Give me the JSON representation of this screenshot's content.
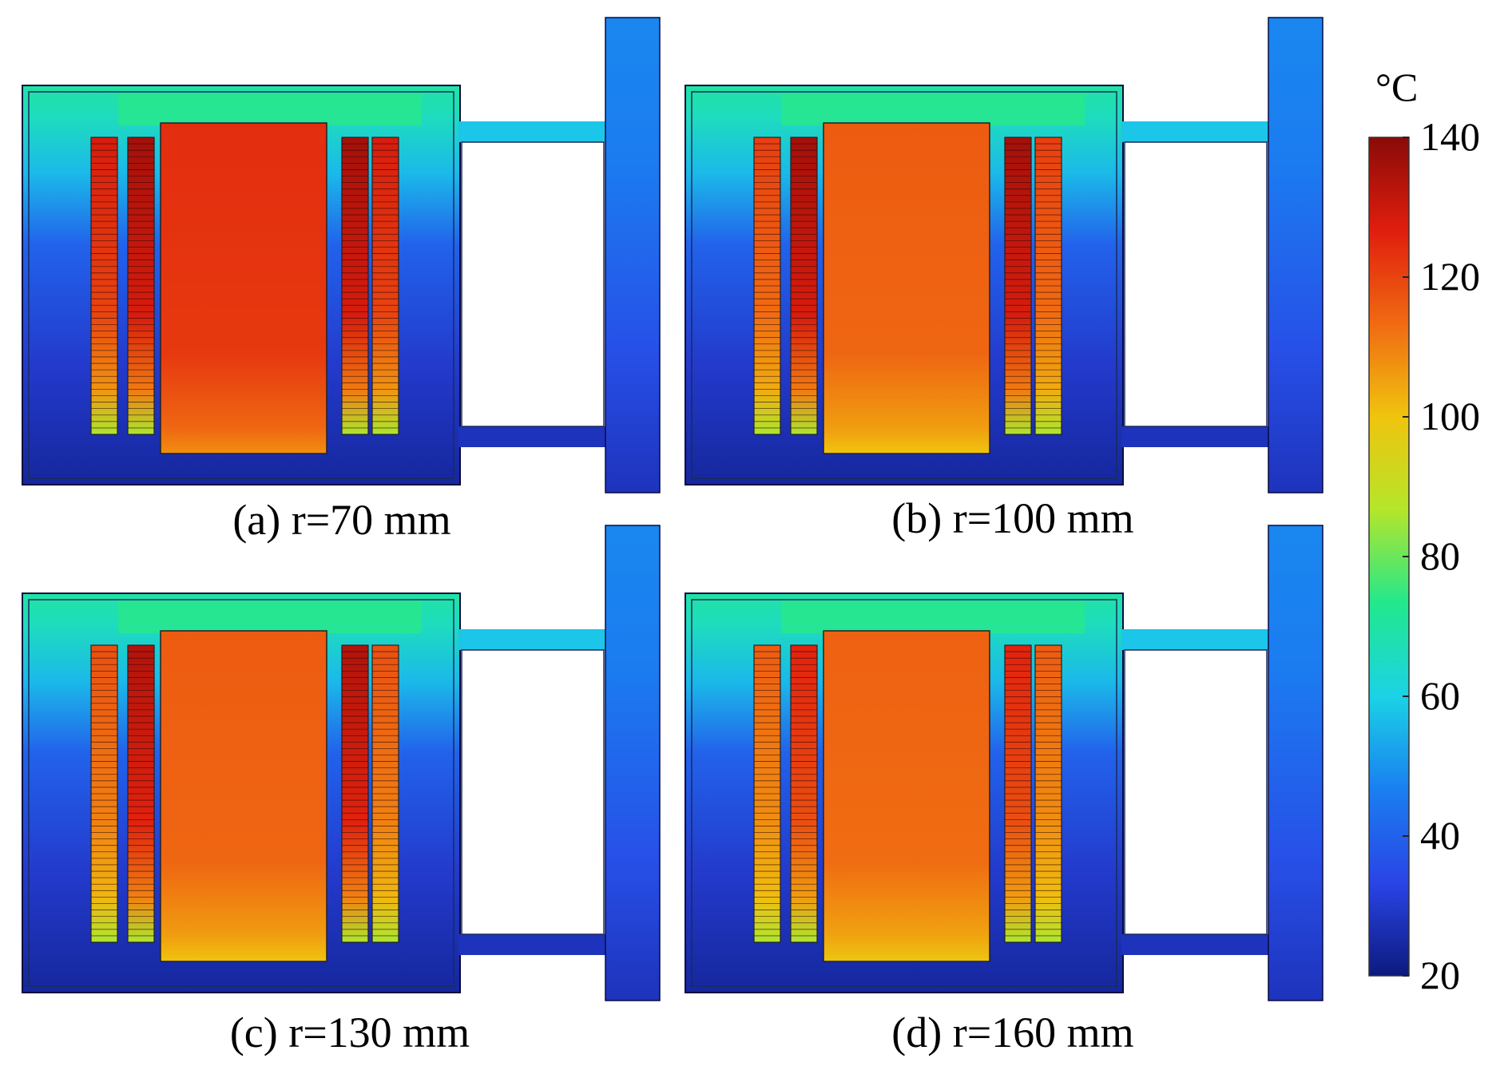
{
  "figure": {
    "panels": [
      {
        "id": "a",
        "caption": "(a) r=70 mm",
        "outer_coil_temp": 128,
        "inner_coil_temp": 136,
        "core_temp": 124,
        "coil_bottom_temp": 86
      },
      {
        "id": "b",
        "caption": "(b) r=100 mm",
        "outer_coil_temp": 121,
        "inner_coil_temp": 136,
        "core_temp": 116,
        "coil_bottom_temp": 86
      },
      {
        "id": "c",
        "caption": "(c) r=130 mm",
        "outer_coil_temp": 118,
        "inner_coil_temp": 134,
        "core_temp": 116,
        "coil_bottom_temp": 86
      },
      {
        "id": "d",
        "caption": "(d) r=160 mm",
        "outer_coil_temp": 116,
        "inner_coil_temp": 126,
        "core_temp": 115,
        "coil_bottom_temp": 86
      }
    ],
    "colorbar": {
      "unit": "°C",
      "min": 20,
      "max": 140,
      "ticks": [
        "140",
        "120",
        "100",
        "80",
        "60",
        "40",
        "20"
      ],
      "colors": [
        "#0c1a7e",
        "#2a44e6",
        "#1a7ff0",
        "#1bd2e6",
        "#22e88c",
        "#b4e62a",
        "#f0c40e",
        "#f06a12",
        "#e01e0e",
        "#8a0a08"
      ]
    }
  }
}
